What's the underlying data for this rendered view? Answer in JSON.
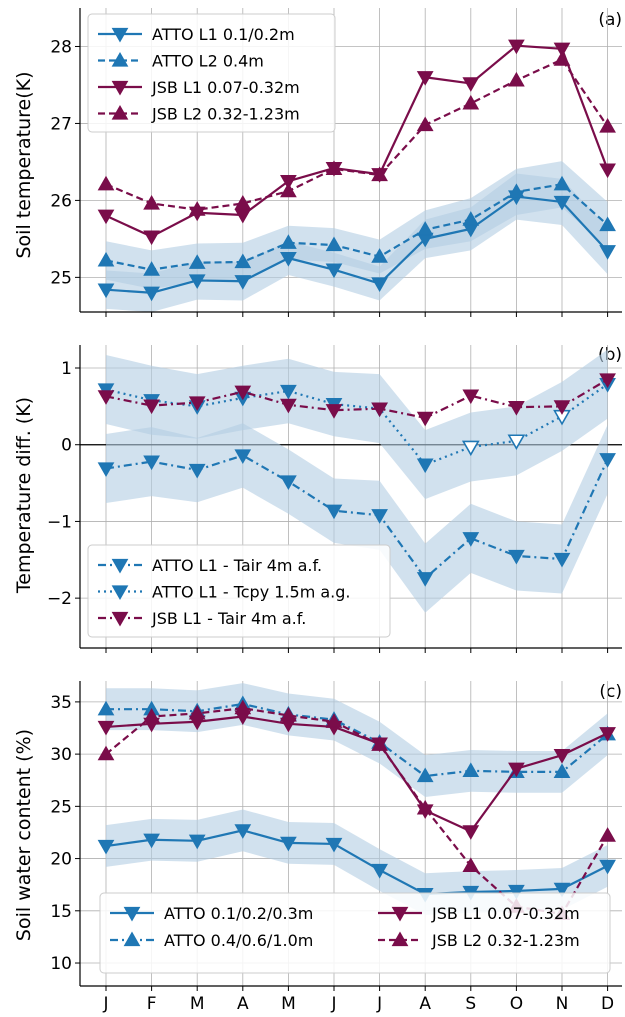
{
  "colors": {
    "atto": "#1f77b4",
    "jsb": "#7a0d4a",
    "band": "#b3cde3",
    "grid": "#b0b0b0"
  },
  "chart_data": [
    {
      "type": "line",
      "panel_label": "(a)",
      "ylabel": "Soil temperature(K)",
      "categories": [
        "J",
        "F",
        "M",
        "A",
        "M",
        "J",
        "J",
        "A",
        "S",
        "O",
        "N",
        "D"
      ],
      "yticks": [
        25,
        26,
        27,
        28
      ],
      "ylim": [
        24.55,
        28.5
      ],
      "grid": true,
      "legend_position": "top-left",
      "series": [
        {
          "name": "ATTO L1 0.1/0.2m",
          "color": "atto",
          "dash": "solid",
          "marker": "tri-down",
          "values": [
            24.84,
            24.8,
            24.96,
            24.95,
            25.25,
            25.1,
            24.92,
            25.5,
            25.63,
            26.05,
            25.98,
            25.34
          ],
          "band": [
            0.25,
            0.25,
            0.25,
            0.25,
            0.22,
            0.22,
            0.22,
            0.25,
            0.28,
            0.3,
            0.3,
            0.3
          ]
        },
        {
          "name": "ATTO L2 0.4m",
          "color": "atto",
          "dash": "dashed",
          "marker": "tri-up",
          "values": [
            25.22,
            25.1,
            25.19,
            25.2,
            25.45,
            25.42,
            25.27,
            25.62,
            25.75,
            26.11,
            26.21,
            25.68
          ],
          "band": [
            0.25,
            0.25,
            0.25,
            0.25,
            0.22,
            0.22,
            0.22,
            0.25,
            0.28,
            0.3,
            0.3,
            0.3
          ]
        },
        {
          "name": "JSB L1 0.07-0.32m",
          "color": "jsb",
          "dash": "solid",
          "marker": "tri-down",
          "values": [
            25.8,
            25.53,
            25.84,
            25.81,
            26.25,
            26.42,
            26.34,
            27.6,
            27.52,
            28.01,
            27.97,
            26.4
          ]
        },
        {
          "name": "JSB L2 0.32-1.23m",
          "color": "jsb",
          "dash": "dashed",
          "marker": "tri-up",
          "values": [
            26.21,
            25.96,
            25.88,
            25.96,
            26.12,
            26.41,
            26.33,
            26.98,
            27.26,
            27.56,
            27.83,
            26.96
          ]
        }
      ]
    },
    {
      "type": "line",
      "panel_label": "(b)",
      "ylabel": "Temperature diff. (K)",
      "categories": [
        "J",
        "F",
        "M",
        "A",
        "M",
        "J",
        "J",
        "A",
        "S",
        "O",
        "N",
        "D"
      ],
      "yticks": [
        -2,
        -1,
        0,
        1
      ],
      "ylim": [
        -2.65,
        1.3
      ],
      "zero_line": true,
      "grid": true,
      "legend_position": "bottom-left",
      "series": [
        {
          "name": "ATTO L1 - Tair 4m a.f.",
          "color": "atto",
          "dash": "dashdot",
          "marker": "tri-down",
          "values": [
            -0.31,
            -0.22,
            -0.33,
            -0.14,
            -0.48,
            -0.86,
            -0.92,
            -1.74,
            -1.22,
            -1.45,
            -1.49,
            -0.19
          ],
          "band": [
            0.45,
            0.45,
            0.42,
            0.42,
            0.42,
            0.42,
            0.45,
            0.45,
            0.45,
            0.45,
            0.45,
            0.45
          ]
        },
        {
          "name": "ATTO L1 - Tcpy 1.5m a.g.",
          "color": "atto",
          "dash": "dotted",
          "marker": "tri-down",
          "values": [
            0.72,
            0.58,
            0.5,
            0.61,
            0.7,
            0.53,
            0.47,
            -0.26,
            -0.03,
            0.05,
            0.37,
            0.79
          ],
          "band": [
            0.45,
            0.45,
            0.42,
            0.42,
            0.42,
            0.42,
            0.45,
            0.45,
            0.45,
            0.45,
            0.45,
            0.45
          ],
          "hollow": [
            false,
            false,
            false,
            false,
            false,
            false,
            false,
            false,
            true,
            true,
            true,
            false
          ]
        },
        {
          "name": "JSB L1 - Tair 4m a.f.",
          "color": "jsb",
          "dash": "dashdot",
          "marker": "tri-down",
          "values": [
            0.63,
            0.51,
            0.55,
            0.69,
            0.52,
            0.45,
            0.47,
            0.35,
            0.64,
            0.49,
            0.5,
            0.85
          ]
        }
      ]
    },
    {
      "type": "line",
      "panel_label": "(c)",
      "ylabel": "Soil water content (%)",
      "categories": [
        "J",
        "F",
        "M",
        "A",
        "M",
        "J",
        "J",
        "A",
        "S",
        "O",
        "N",
        "D"
      ],
      "yticks": [
        10,
        15,
        20,
        25,
        30,
        35
      ],
      "ylim": [
        7.8,
        37
      ],
      "grid": true,
      "legend_position": "bottom-center",
      "series": [
        {
          "name": "ATTO 0.1/0.2/0.3m",
          "color": "atto",
          "dash": "solid",
          "marker": "tri-down",
          "values": [
            21.2,
            21.8,
            21.7,
            22.7,
            21.5,
            21.4,
            18.9,
            16.6,
            16.8,
            16.9,
            17.1,
            19.3
          ],
          "band": [
            2.0,
            2.0,
            2.0,
            2.0,
            2.0,
            2.0,
            2.0,
            2.0,
            2.0,
            2.0,
            2.0,
            2.0
          ]
        },
        {
          "name": "ATTO 0.4/0.6/1.0m",
          "color": "atto",
          "dash": "dashdot",
          "marker": "tri-up",
          "values": [
            34.3,
            34.3,
            34.1,
            34.8,
            33.8,
            33.3,
            31.1,
            27.9,
            28.4,
            28.3,
            28.3,
            31.9
          ],
          "band": [
            2.0,
            2.0,
            2.0,
            2.0,
            2.0,
            2.0,
            2.0,
            2.0,
            2.0,
            2.0,
            2.0,
            2.0
          ]
        },
        {
          "name": "JSB L1 0.07-0.32m",
          "color": "jsb",
          "dash": "solid",
          "marker": "tri-down",
          "values": [
            32.6,
            32.9,
            33.1,
            33.6,
            32.9,
            32.6,
            31.0,
            24.6,
            22.6,
            28.6,
            29.9,
            32.0
          ]
        },
        {
          "name": "JSB L2 0.32-1.23m",
          "color": "jsb",
          "dash": "dashed",
          "marker": "tri-up",
          "values": [
            30.0,
            33.6,
            33.9,
            34.4,
            33.7,
            33.1,
            30.9,
            24.8,
            19.3,
            15.4,
            14.7,
            22.2
          ]
        }
      ]
    }
  ]
}
